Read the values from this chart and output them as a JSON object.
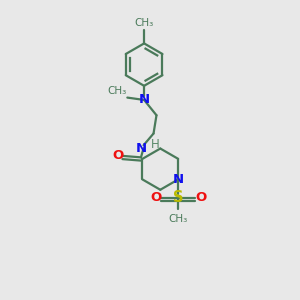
{
  "bg_color": "#e8e8e8",
  "bond_color": "#4a7a5a",
  "N_color": "#1010ee",
  "O_color": "#ee1010",
  "S_color": "#bbbb00",
  "H_color": "#5a8a6a",
  "line_width": 1.6,
  "font_size": 8.5,
  "xlim": [
    0,
    10
  ],
  "ylim": [
    0,
    10
  ]
}
